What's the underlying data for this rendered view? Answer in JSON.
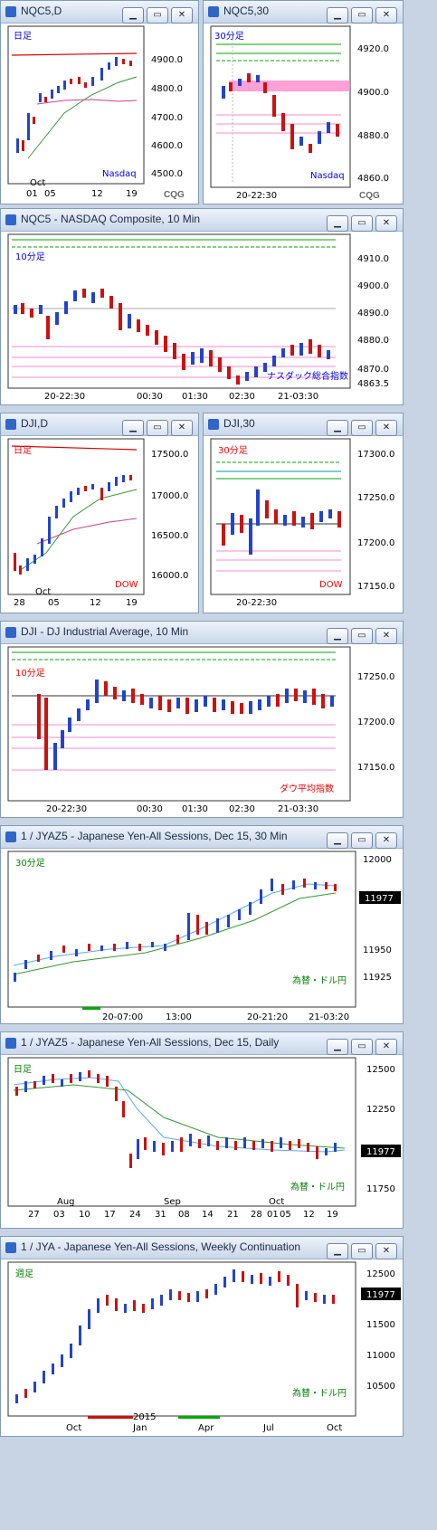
{
  "windows": [
    {
      "key": "w1",
      "title": "NQC5,D",
      "period": "日足",
      "period_color": "#0000ff",
      "name": "Nasdaq",
      "name_color": "#0000ff",
      "yt": [
        "4900.0",
        "4800.0",
        "4700.0",
        "4600.0",
        "4500.0"
      ],
      "xt": [
        "01",
        "05",
        "12",
        "19"
      ],
      "xmonth": "Oct"
    },
    {
      "key": "w2",
      "title": "NQC5,30",
      "period": "30分足",
      "period_color": "#0000ff",
      "name": "Nasdaq",
      "name_color": "#0000ff",
      "yt": [
        "4920.0",
        "4900.0",
        "4880.0",
        "4860.0"
      ],
      "xt": [
        "20-22:30"
      ]
    },
    {
      "key": "w3",
      "title": "NQC5 - NASDAQ Composite, 10 Min",
      "period": "10分足",
      "period_color": "#0000ff",
      "name": "ナスダック総合指数",
      "name_color": "#0000ff",
      "yt": [
        "4910.0",
        "4900.0",
        "4890.0",
        "4880.0",
        "4870.0",
        "4863.5"
      ],
      "xt": [
        "20-22:30",
        "00:30",
        "01:30",
        "02:30",
        "21-03:30"
      ]
    },
    {
      "key": "w4",
      "title": "DJI,D",
      "period": "日足",
      "period_color": "#ff0000",
      "name": "DOW",
      "name_color": "#ff0000",
      "yt": [
        "17500.0",
        "17000.0",
        "16500.0",
        "16000.0"
      ],
      "xt": [
        "28",
        "05",
        "12",
        "19"
      ],
      "xmonth": "Oct"
    },
    {
      "key": "w5",
      "title": "DJI,30",
      "period": "30分足",
      "period_color": "#ff0000",
      "name": "DOW",
      "name_color": "#ff0000",
      "yt": [
        "17300.0",
        "17250.0",
        "17200.0",
        "17150.0"
      ],
      "xt": [
        "20-22:30"
      ]
    },
    {
      "key": "w6",
      "title": "DJI - DJ Industrial Average, 10 Min",
      "period": "10分足",
      "period_color": "#ff0000",
      "name": "ダウ平均指数",
      "name_color": "#ff0000",
      "yt": [
        "17250.0",
        "17200.0",
        "17150.0"
      ],
      "xt": [
        "20-22:30",
        "00:30",
        "01:30",
        "02:30",
        "21-03:30"
      ]
    },
    {
      "key": "w7",
      "title": "1 / JYAZ5 - Japanese Yen-All Sessions, Dec 15, 30 Min",
      "period": "30分足",
      "period_color": "#008000",
      "name": "為替・ドル円",
      "name_color": "#008000",
      "yt": [
        "12000",
        "11950",
        "11925"
      ],
      "xt": [
        "20-07:00",
        "13:00",
        "20-21:20",
        "21-03:20"
      ],
      "last": "11977"
    },
    {
      "key": "w8",
      "title": "1 / JYAZ5 - Japanese Yen-All Sessions, Dec 15, Daily",
      "period": "日足",
      "period_color": "#008000",
      "name": "為替・ドル円",
      "name_color": "#008000",
      "yt": [
        "12500",
        "12250",
        "11750"
      ],
      "xt": [
        "27",
        "03",
        "10",
        "17",
        "24",
        "31",
        "08",
        "14",
        "21",
        "28",
        "01",
        "05",
        "12",
        "19"
      ],
      "xmonths": [
        "Aug",
        "Sep",
        "Oct"
      ],
      "last": "11977"
    },
    {
      "key": "w9",
      "title": "1 / JYA - Japanese Yen-All Sessions, Weekly Continuation",
      "period": "週足",
      "period_color": "#008000",
      "name": "為替・ドル円",
      "name_color": "#008000",
      "yt": [
        "12500",
        "11500",
        "11000",
        "10500"
      ],
      "xt": [
        "Oct",
        "Jan",
        "Apr",
        "Jul",
        "Oct"
      ],
      "xyear": "2015",
      "last": "11977"
    }
  ],
  "brand": "CQG",
  "colors": {
    "up": "#2244cc",
    "down": "#cc1111",
    "ma_green": "#339933",
    "ma_pink": "#d04090",
    "ma_red": "#dd0000",
    "hl_green": "#00aa00",
    "hl_pink": "#ff88cc"
  }
}
